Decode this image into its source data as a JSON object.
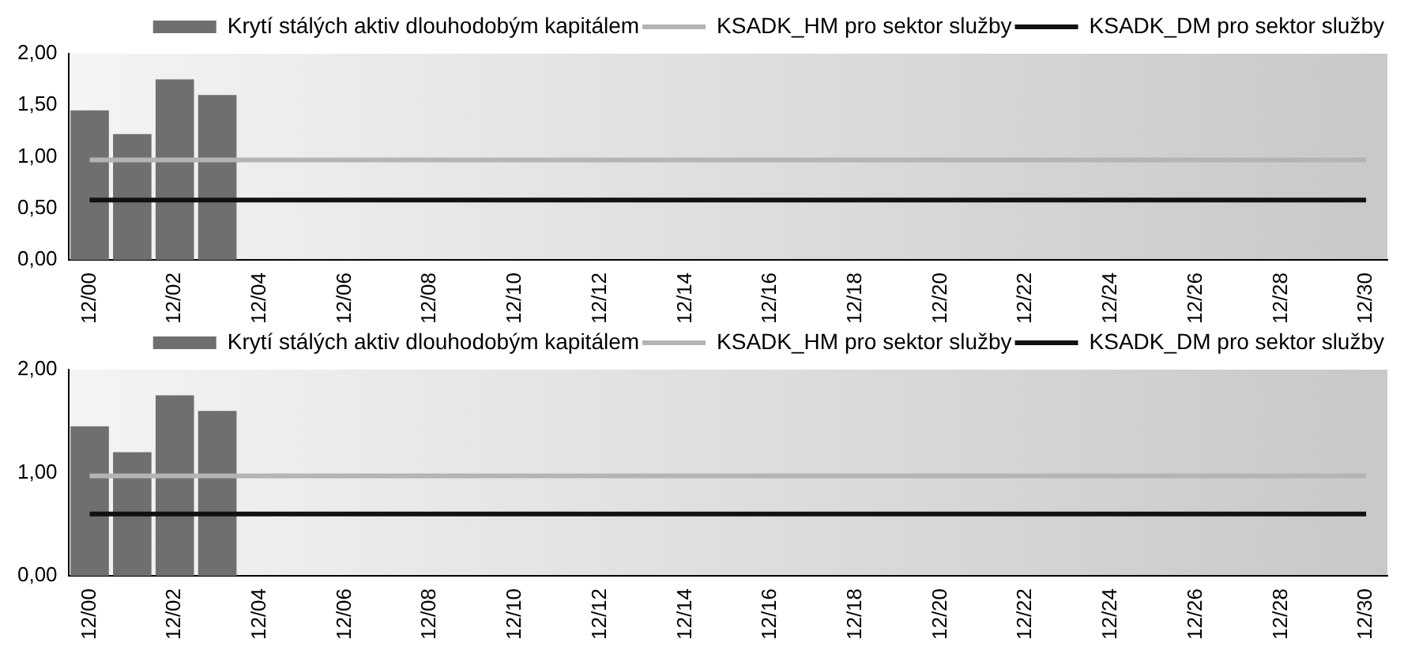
{
  "chart_data": [
    {
      "type": "bar",
      "categories": [
        "12/00",
        null,
        "12/02",
        null,
        "12/04",
        null,
        "12/06",
        null,
        "12/08",
        null,
        "12/10",
        null,
        "12/12",
        null,
        "12/14",
        null,
        "12/16",
        null,
        "12/18",
        null,
        "12/20",
        null,
        "12/22",
        null,
        "12/24",
        null,
        "12/26",
        null,
        "12/28",
        null,
        "12/30"
      ],
      "series": [
        {
          "name": "Krytí stálých aktiv dlouhodobým kapitálem",
          "color": "#6f6f6f",
          "values": [
            1.45,
            1.22,
            1.75,
            1.6,
            null,
            null,
            null,
            null,
            null,
            null,
            null,
            null,
            null,
            null,
            null,
            null,
            null,
            null,
            null,
            null,
            null,
            null,
            null,
            null,
            null,
            null,
            null,
            null,
            null,
            null,
            null
          ]
        },
        {
          "name": "KSADK_HM pro sektor služby",
          "type": "line",
          "color": "#b4b4b4",
          "values": [
            0.97,
            0.97,
            0.97,
            0.97,
            0.97,
            0.97,
            0.97,
            0.97,
            0.97,
            0.97,
            0.97,
            0.97,
            0.97,
            0.97,
            0.97,
            0.97,
            0.97,
            0.97,
            0.97,
            0.97,
            0.97,
            0.97,
            0.97,
            0.97,
            0.97,
            0.97,
            0.97,
            0.97,
            0.97,
            0.97,
            0.97
          ]
        },
        {
          "name": "KSADK_DM pro sektor služby",
          "type": "line",
          "color": "#111111",
          "values": [
            0.58,
            0.58,
            0.58,
            0.58,
            0.58,
            0.58,
            0.58,
            0.58,
            0.58,
            0.58,
            0.58,
            0.58,
            0.58,
            0.58,
            0.58,
            0.58,
            0.58,
            0.58,
            0.58,
            0.58,
            0.58,
            0.58,
            0.58,
            0.58,
            0.58,
            0.58,
            0.58,
            0.58,
            0.58,
            0.58,
            0.58
          ]
        }
      ],
      "ylim": [
        0,
        2
      ],
      "yticks": [
        {
          "value": 0,
          "label": "0,00"
        },
        {
          "value": 0.5,
          "label": "0,50"
        },
        {
          "value": 1,
          "label": "1,00"
        },
        {
          "value": 1.5,
          "label": "1,50"
        },
        {
          "value": 2,
          "label": "2,00"
        }
      ],
      "grid": false,
      "legend": "top right",
      "marker": "none"
    },
    {
      "type": "bar",
      "categories": [
        "12/00",
        null,
        "12/02",
        null,
        "12/04",
        null,
        "12/06",
        null,
        "12/08",
        null,
        "12/10",
        null,
        "12/12",
        null,
        "12/14",
        null,
        "12/16",
        null,
        "12/18",
        null,
        "12/20",
        null,
        "12/22",
        null,
        "12/24",
        null,
        "12/26",
        null,
        "12/28",
        null,
        "12/30"
      ],
      "series": [
        {
          "name": "Krytí stálých aktiv dlouhodobým kapitálem",
          "color": "#6f6f6f",
          "values": [
            1.45,
            1.2,
            1.75,
            1.6,
            null,
            null,
            null,
            null,
            null,
            null,
            null,
            null,
            null,
            null,
            null,
            null,
            null,
            null,
            null,
            null,
            null,
            null,
            null,
            null,
            null,
            null,
            null,
            null,
            null,
            null,
            null
          ]
        },
        {
          "name": "KSADK_HM pro sektor služby",
          "type": "line",
          "color": "#b4b4b4",
          "values": [
            0.97,
            0.97,
            0.97,
            0.97,
            0.97,
            0.97,
            0.97,
            0.97,
            0.97,
            0.97,
            0.97,
            0.97,
            0.97,
            0.97,
            0.97,
            0.97,
            0.97,
            0.97,
            0.97,
            0.97,
            0.97,
            0.97,
            0.97,
            0.97,
            0.97,
            0.97,
            0.97,
            0.97,
            0.97,
            0.97,
            0.97
          ]
        },
        {
          "name": "KSADK_DM pro sektor služby",
          "type": "line",
          "color": "#111111",
          "values": [
            0.6,
            0.6,
            0.6,
            0.6,
            0.6,
            0.6,
            0.6,
            0.6,
            0.6,
            0.6,
            0.6,
            0.6,
            0.6,
            0.6,
            0.6,
            0.6,
            0.6,
            0.6,
            0.6,
            0.6,
            0.6,
            0.6,
            0.6,
            0.6,
            0.6,
            0.6,
            0.6,
            0.6,
            0.6,
            0.6,
            0.6
          ]
        }
      ],
      "ylim": [
        0,
        2
      ],
      "yticks": [
        {
          "value": 0,
          "label": "0,00"
        },
        {
          "value": 1,
          "label": "1,00"
        },
        {
          "value": 2,
          "label": "2,00"
        }
      ],
      "grid": false,
      "legend": "top right",
      "marker": "none"
    }
  ]
}
